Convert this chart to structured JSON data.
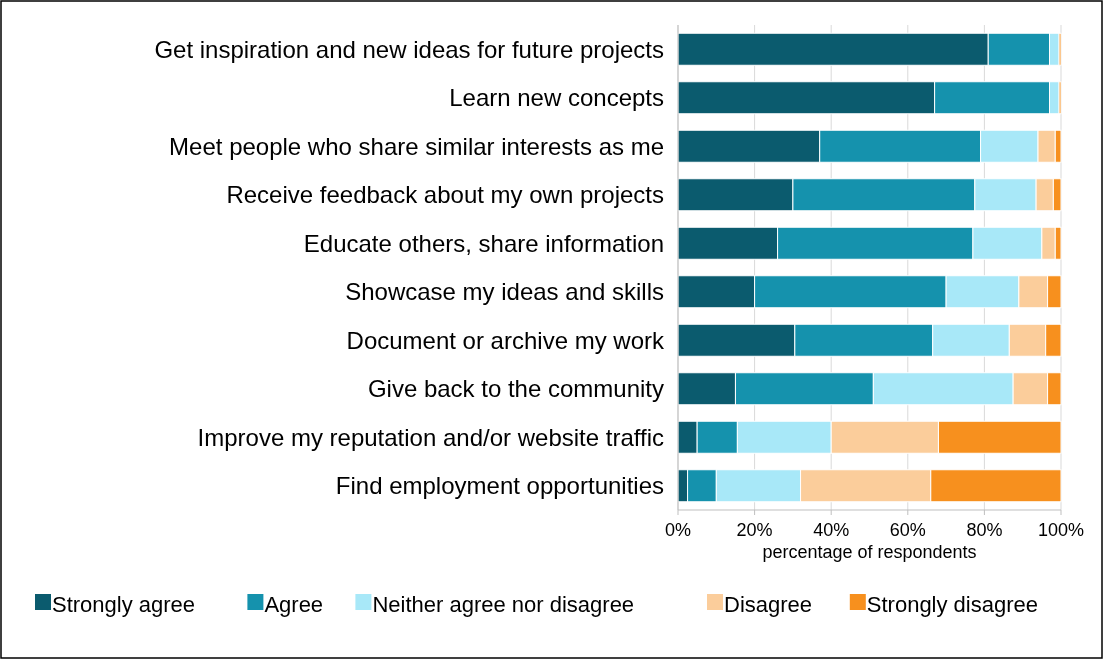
{
  "chart_data": {
    "type": "bar",
    "orientation": "horizontal",
    "stacked": true,
    "categories": [
      "Get inspiration and new ideas for future projects",
      "Learn new concepts",
      "Meet people who share similar interests as me",
      "Receive feedback about my own projects",
      "Educate others, share information",
      "Showcase my ideas and skills",
      "Document or archive my work",
      "Give back to the community",
      "Improve my reputation and/or website traffic",
      "Find employment opportunities"
    ],
    "series": [
      {
        "name": "Strongly agree",
        "color": "#0b5b6e",
        "values": [
          81,
          67,
          37,
          30,
          26,
          20,
          30.5,
          15,
          5,
          2.5
        ]
      },
      {
        "name": "Agree",
        "color": "#1592ad",
        "values": [
          16,
          30,
          42,
          47.5,
          51,
          50,
          36,
          36,
          10.5,
          7.5
        ]
      },
      {
        "name": "Neither agree nor disagree",
        "color": "#a8e8f8",
        "values": [
          2.5,
          2.5,
          15,
          16,
          18,
          19,
          20,
          36.5,
          24.5,
          22
        ]
      },
      {
        "name": "Disagree",
        "color": "#fbcd9b",
        "values": [
          0,
          0,
          4.5,
          4.5,
          3.5,
          7.5,
          9.5,
          9,
          28,
          34
        ]
      },
      {
        "name": "Strongly disagree",
        "color": "#f7901e",
        "values": [
          0.5,
          0.5,
          1.5,
          2,
          1.5,
          3.5,
          4,
          3.5,
          32,
          34
        ]
      }
    ],
    "xlabel": "percentage of respondents",
    "xlim": [
      0,
      100
    ],
    "xticks": [
      {
        "value": 0,
        "label": "0%"
      },
      {
        "value": 20,
        "label": "20%"
      },
      {
        "value": 40,
        "label": "40%"
      },
      {
        "value": 60,
        "label": "60%"
      },
      {
        "value": 80,
        "label": "80%"
      },
      {
        "value": 100,
        "label": "100%"
      }
    ],
    "grid": "x",
    "legend": "bottom"
  }
}
